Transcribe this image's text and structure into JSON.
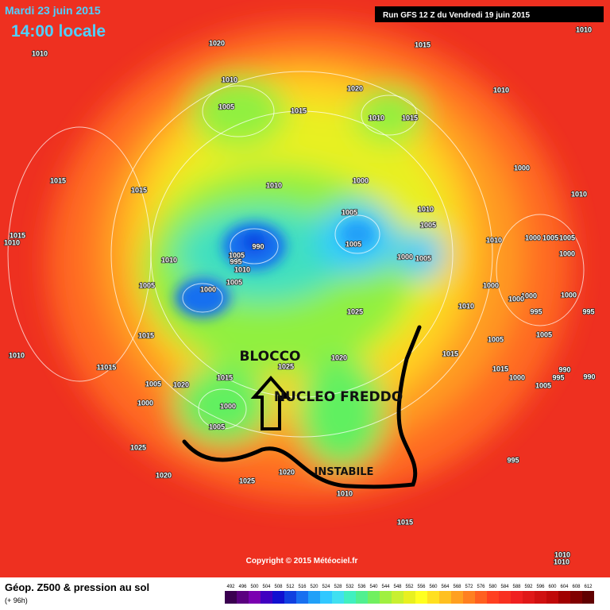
{
  "header": {
    "date": "Mardi 23 juin 2015",
    "time": "14:00 locale",
    "run": "Run GFS 12 Z du Vendredi 19 juin 2015"
  },
  "annotations": {
    "block": "BLOCCO",
    "cold": "NUCLEO FREDDO",
    "unstable": "INSTABILE"
  },
  "pressure_labels": [
    "1010",
    "1020",
    "1015",
    "1010",
    "1010",
    "1020",
    "1010",
    "1005",
    "1015",
    "1010",
    "1015",
    "990",
    "1005",
    "1010",
    "1015",
    "1010",
    "1000",
    "1005",
    "1010",
    "1005",
    "1015",
    "1015",
    "1010",
    "1000",
    "1005",
    "1000",
    "1005",
    "995",
    "1010",
    "1000",
    "995",
    "1000",
    "1005",
    "1005",
    "1000",
    "1000",
    "1025",
    "1010",
    "1000",
    "1005",
    "1005",
    "1015",
    "1020",
    "1025",
    "1015",
    "1010",
    "1015",
    "1005",
    "1000",
    "1005",
    "1005",
    "1010",
    "1000",
    "990",
    "990",
    "995",
    "1000",
    "1015",
    "1020",
    "1025",
    "1020",
    "1025",
    "1020",
    "995",
    "1010",
    "1015",
    "1010",
    "1010",
    "11015",
    "1005",
    "1005",
    "1000",
    "1000",
    "995",
    "1010"
  ],
  "copyright": "Copyright © 2015 Météociel.fr",
  "legend": {
    "title": "Géop. Z500 & pression au sol",
    "lead": "(+ 96h)",
    "scale": [
      492,
      496,
      500,
      504,
      508,
      512,
      516,
      520,
      524,
      528,
      532,
      536,
      540,
      544,
      548,
      552,
      556,
      560,
      564,
      568,
      572,
      576,
      580,
      584,
      588,
      592,
      596,
      600,
      604,
      608,
      612
    ],
    "colors": [
      "#3a0050",
      "#5a0080",
      "#7a00b0",
      "#4000c0",
      "#1010d0",
      "#1040e0",
      "#1870f0",
      "#20a0f8",
      "#30c8ff",
      "#40e0f0",
      "#40f0c0",
      "#50f090",
      "#70f060",
      "#a0f040",
      "#c8f030",
      "#e8f020",
      "#ffff20",
      "#ffe020",
      "#ffc020",
      "#ffa020",
      "#ff8020",
      "#ff6020",
      "#ff4020",
      "#f83020",
      "#f02020",
      "#e01818",
      "#d01010",
      "#c00808",
      "#a00000",
      "#800000",
      "#600000"
    ]
  }
}
